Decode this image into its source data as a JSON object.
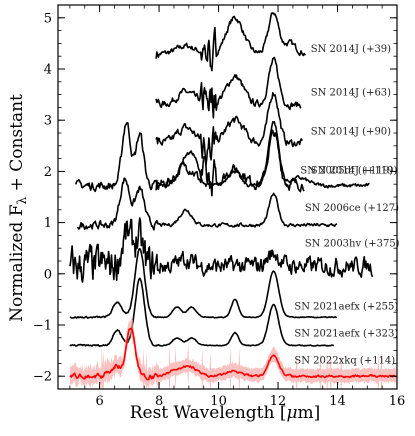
{
  "chart_data": {
    "type": "line",
    "title": "",
    "xlabel_text": "Rest Wavelength [",
    "xlabel_mu": "μ",
    "xlabel_unit": "m]",
    "ylabel_main": "Normalized F",
    "ylabel_sub": "λ",
    "ylabel_tail": " + Constant",
    "xlim": [
      4.6,
      16
    ],
    "ylim": [
      -2.25,
      5.25
    ],
    "xticks": [
      6,
      8,
      10,
      12,
      14,
      16
    ],
    "yticks": [
      -2,
      -1,
      0,
      1,
      2,
      3,
      4,
      5
    ],
    "grid": false,
    "series": [
      {
        "name": "SN 2014J (+39)",
        "offset": 4.3,
        "x_range": [
          7.9,
          12.95
        ],
        "color": "#000000",
        "peaks": [
          [
            10.55,
            0.7,
            0.28
          ],
          [
            11.85,
            0.8,
            0.17
          ],
          [
            8.9,
            0.15,
            0.3
          ],
          [
            12.4,
            0.2,
            0.2
          ]
        ],
        "noise": 0.1,
        "label_x": 13.1,
        "label_y": 4.33
      },
      {
        "name": "SN 2014J (+63)",
        "offset": 3.3,
        "x_range": [
          7.9,
          12.8
        ],
        "color": "#000000",
        "peaks": [
          [
            10.55,
            0.55,
            0.28
          ],
          [
            11.85,
            0.85,
            0.17
          ],
          [
            8.9,
            0.25,
            0.3
          ],
          [
            9.7,
            0.15,
            0.2
          ]
        ],
        "noise": 0.12,
        "label_x": 13.1,
        "label_y": 3.48
      },
      {
        "name": "SN 2014J (+90)",
        "offset": 2.55,
        "x_range": [
          7.9,
          12.85
        ],
        "color": "#000000",
        "peaks": [
          [
            10.55,
            0.45,
            0.3
          ],
          [
            11.85,
            1.0,
            0.17
          ],
          [
            8.9,
            0.3,
            0.3
          ]
        ],
        "noise": 0.14,
        "label_x": 13.1,
        "label_y": 2.72
      },
      {
        "name": "SN 2014J (+119)",
        "offset": 1.75,
        "x_range": [
          7.9,
          12.9
        ],
        "color": "#000000",
        "peaks": [
          [
            10.55,
            0.3,
            0.3
          ],
          [
            11.85,
            1.0,
            0.17
          ],
          [
            8.9,
            0.35,
            0.3
          ]
        ],
        "noise": 0.18,
        "label_x": 13.1,
        "label_y": 1.96
      },
      {
        "name": "SN 2005df (+119)",
        "offset": 1.72,
        "x_range": [
          5.2,
          15.1
        ],
        "color": "#000000",
        "peaks": [
          [
            6.9,
            1.25,
            0.14
          ],
          [
            7.35,
            1.0,
            0.13
          ],
          [
            8.9,
            0.55,
            0.22
          ],
          [
            9.2,
            0.35,
            0.15
          ],
          [
            10.5,
            0.3,
            0.2
          ],
          [
            11.85,
            1.25,
            0.17
          ],
          [
            12.7,
            0.15,
            0.3
          ]
        ],
        "noise": 0.07,
        "label_x": 12.75,
        "label_y": 1.96
      },
      {
        "name": "SN 2006ce (+127)",
        "offset": 0.95,
        "x_range": [
          5.25,
          14.0
        ],
        "color": "#000000",
        "peaks": [
          [
            6.85,
            0.9,
            0.16
          ],
          [
            7.35,
            0.7,
            0.15
          ],
          [
            8.9,
            0.3,
            0.2
          ],
          [
            11.85,
            0.6,
            0.15
          ]
        ],
        "noise": 0.06,
        "label_x": 12.9,
        "label_y": 1.23
      },
      {
        "name": "SN 2003hv (+375)",
        "offset": 0.15,
        "x_range": [
          5.0,
          15.2
        ],
        "color": "#000000",
        "peaks": [
          [
            6.9,
            0.6,
            0.16
          ],
          [
            7.3,
            0.5,
            0.14
          ],
          [
            8.9,
            0.15,
            0.2
          ],
          [
            11.85,
            0.25,
            0.2
          ]
        ],
        "noise": 0.3,
        "label_x": 12.9,
        "label_y": 0.53
      },
      {
        "name": "SN 2021aefx (+255)",
        "offset": -0.85,
        "x_range": [
          5.0,
          14.0
        ],
        "color": "#000000",
        "peaks": [
          [
            7.35,
            1.35,
            0.16
          ],
          [
            6.6,
            0.3,
            0.15
          ],
          [
            8.6,
            0.2,
            0.15
          ],
          [
            9.1,
            0.2,
            0.15
          ],
          [
            10.55,
            0.35,
            0.12
          ],
          [
            11.85,
            0.9,
            0.17
          ]
        ],
        "noise": 0.015,
        "label_x": 12.55,
        "label_y": -0.7
      },
      {
        "name": "SN 2021aefx (+323)",
        "offset": -1.4,
        "x_range": [
          5.0,
          13.9
        ],
        "color": "#000000",
        "peaks": [
          [
            7.35,
            1.3,
            0.16
          ],
          [
            6.6,
            0.3,
            0.15
          ],
          [
            8.6,
            0.15,
            0.15
          ],
          [
            9.1,
            0.15,
            0.15
          ],
          [
            10.55,
            0.25,
            0.12
          ],
          [
            11.85,
            0.8,
            0.17
          ]
        ],
        "noise": 0.015,
        "label_x": 12.55,
        "label_y": -1.22
      },
      {
        "name": "SN 2022xkq (+114)",
        "offset": -2.0,
        "x_range": [
          5.0,
          16.0
        ],
        "color": "#ff0000",
        "band_color": "#f7a0a0",
        "peaks": [
          [
            7.05,
            0.95,
            0.14
          ],
          [
            6.55,
            0.2,
            0.2
          ],
          [
            8.5,
            0.1,
            0.2
          ],
          [
            9.0,
            0.2,
            0.25
          ],
          [
            10.5,
            0.1,
            0.25
          ],
          [
            11.85,
            0.4,
            0.18
          ]
        ],
        "noise": 0.04,
        "label_x": 12.55,
        "label_y": -1.75
      }
    ]
  }
}
